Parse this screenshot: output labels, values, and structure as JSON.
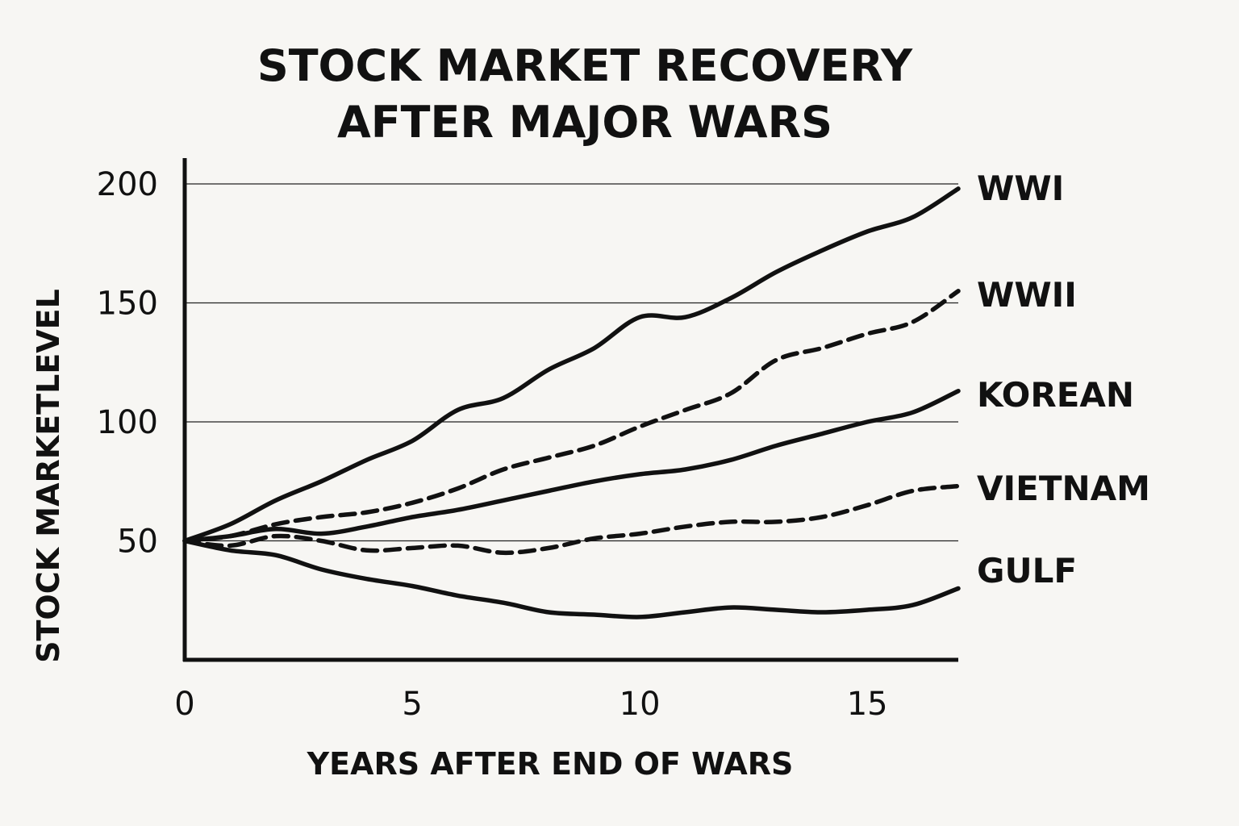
{
  "chart_data": {
    "type": "line",
    "title_line1": "STOCK MARKET RECOVERY",
    "title_line2": "AFTER MAJOR WARS",
    "xlabel": "YEARS AFTER END OF WARS",
    "ylabel": "STOCK MARKETLEVEL",
    "xlim": [
      0,
      17
    ],
    "ylim": [
      0,
      200
    ],
    "x_ticks": [
      0,
      5,
      10,
      15
    ],
    "x_tick_labels": [
      "0",
      "5",
      "10",
      "15"
    ],
    "y_ticks": [
      50,
      100,
      150,
      200
    ],
    "y_tick_labels": [
      "50",
      "100",
      "150",
      "200"
    ],
    "grid": "horizontal",
    "legend": "series labels at right end of lines",
    "x": [
      0,
      1,
      2,
      3,
      4,
      5,
      6,
      7,
      8,
      9,
      10,
      11,
      12,
      13,
      14,
      15,
      16,
      17
    ],
    "series": [
      {
        "name": "WWI",
        "style": "solid",
        "values": [
          50,
          57,
          67,
          75,
          84,
          92,
          105,
          110,
          122,
          131,
          144,
          144,
          152,
          163,
          172,
          180,
          186,
          198
        ]
      },
      {
        "name": "WWII",
        "style": "dashed",
        "values": [
          50,
          52,
          57,
          60,
          62,
          66,
          72,
          80,
          85,
          90,
          98,
          105,
          112,
          126,
          131,
          137,
          142,
          155
        ]
      },
      {
        "name": "KOREAN",
        "style": "solid",
        "values": [
          50,
          52,
          55,
          53,
          56,
          60,
          63,
          67,
          71,
          75,
          78,
          80,
          84,
          90,
          95,
          100,
          104,
          113
        ]
      },
      {
        "name": "VIETNAM",
        "style": "dashed",
        "values": [
          50,
          48,
          52,
          50,
          46,
          47,
          48,
          45,
          47,
          51,
          53,
          56,
          58,
          58,
          60,
          65,
          71,
          73
        ]
      },
      {
        "name": "GULF",
        "style": "solid",
        "values": [
          50,
          46,
          44,
          38,
          34,
          31,
          27,
          24,
          20,
          19,
          18,
          20,
          22,
          21,
          20,
          21,
          23,
          30
        ]
      }
    ]
  }
}
